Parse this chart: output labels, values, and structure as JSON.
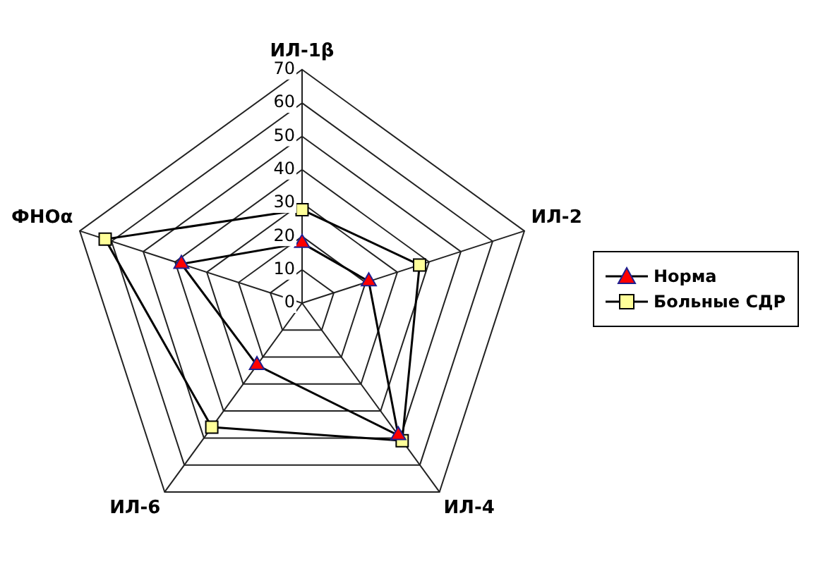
{
  "chart_data": {
    "type": "radar",
    "categories": [
      "ИЛ-1β",
      "ИЛ-2",
      "ИЛ-4",
      "ИЛ-6",
      "ФНОα"
    ],
    "series": [
      {
        "name": "Норма",
        "color": "#000000",
        "colors": [
          "#ff0000",
          "#ff0000",
          "#ff0000",
          "#ff0000",
          "#ff0000"
        ],
        "marker": "triangle",
        "values": [
          18,
          21,
          49,
          23,
          38
        ]
      },
      {
        "name": "Больные СДР",
        "color": "#000000",
        "colors": [
          "#ffff99",
          "#ffff99",
          "#ffff99",
          "#ffff99",
          "#ffff99"
        ],
        "marker": "square",
        "values": [
          28,
          37,
          51,
          46,
          62
        ]
      }
    ],
    "ylim": [
      0,
      70
    ],
    "yticks": [
      0,
      10,
      20,
      30,
      40,
      50,
      60,
      70
    ],
    "grid": true,
    "legend": "right"
  }
}
